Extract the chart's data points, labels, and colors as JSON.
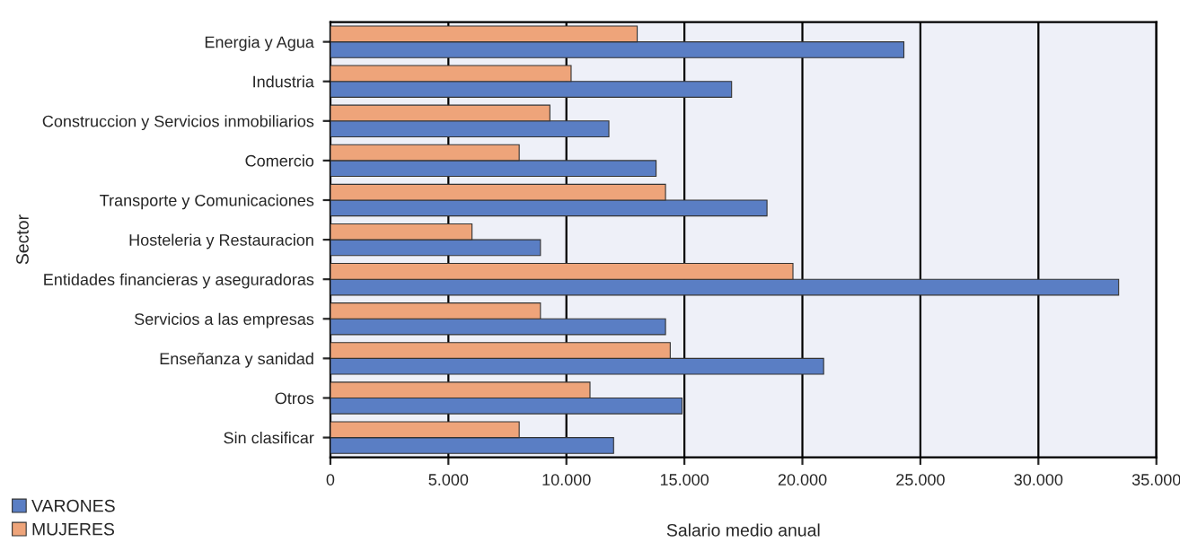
{
  "chart_data": {
    "type": "bar",
    "orientation": "horizontal",
    "xlabel": "Salario medio anual",
    "ylabel": "Sector",
    "categories": [
      "Energia y Agua",
      "Industria",
      "Construccion y Servicios inmobiliarios",
      "Comercio",
      "Transporte y Comunicaciones",
      "Hosteleria y Restauracion",
      "Entidades financieras y aseguradoras",
      "Servicios a las empresas",
      "Enseñanza y sanidad",
      "Otros",
      "Sin clasificar"
    ],
    "series": [
      {
        "name": "VARONES",
        "color": "#5a7ec4",
        "values": [
          24300,
          17000,
          11800,
          13800,
          18500,
          8900,
          33400,
          14200,
          20900,
          14900,
          12000
        ]
      },
      {
        "name": "MUJERES",
        "color": "#eea47a",
        "values": [
          13000,
          10200,
          9300,
          8000,
          14200,
          6000,
          19600,
          8900,
          14400,
          11000,
          8000
        ]
      }
    ],
    "xlim": [
      0,
      35000
    ],
    "xticks": [
      {
        "value": 0,
        "label": "0"
      },
      {
        "value": 5000,
        "label": "5.000"
      },
      {
        "value": 10000,
        "label": "10.000"
      },
      {
        "value": 15000,
        "label": "15.000"
      },
      {
        "value": 20000,
        "label": "20.000"
      },
      {
        "value": 25000,
        "label": "25.000"
      },
      {
        "value": 30000,
        "label": "30.000"
      },
      {
        "value": 35000,
        "label": "35.000"
      }
    ],
    "grid": "x",
    "legend": "bottom left"
  }
}
